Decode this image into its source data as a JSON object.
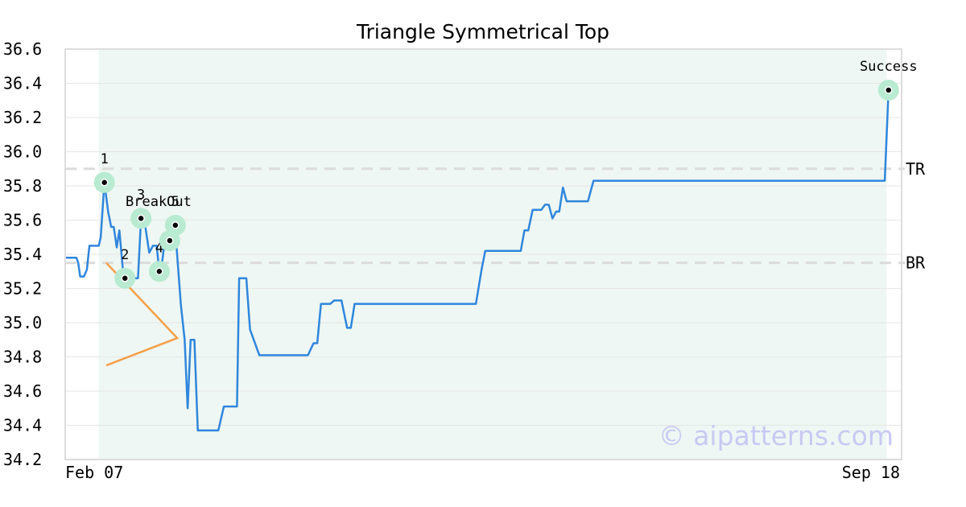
{
  "chart_data": {
    "type": "line",
    "title": "Triangle Symmetrical Top",
    "xlabel": "",
    "ylabel": "",
    "x_tick_labels": [
      "Feb 07",
      "Sep 18"
    ],
    "ylim": [
      34.2,
      36.6
    ],
    "y_ticks": [
      34.2,
      34.4,
      34.6,
      34.8,
      35.0,
      35.2,
      35.4,
      35.6,
      35.8,
      36.0,
      36.2,
      36.4,
      36.6
    ],
    "grid": true,
    "legend": "none",
    "x_range_days": [
      0,
      224
    ],
    "pattern_window_days": [
      9,
      220
    ],
    "series": [
      {
        "color": "#2f86dd",
        "points": [
          [
            0,
            35.38
          ],
          [
            3,
            35.38
          ],
          [
            3.5,
            35.35
          ],
          [
            4,
            35.27
          ],
          [
            5,
            35.27
          ],
          [
            5.8,
            35.31
          ],
          [
            6.5,
            35.45
          ],
          [
            8,
            35.45
          ],
          [
            9,
            35.45
          ],
          [
            9.5,
            35.5
          ],
          [
            10.5,
            35.82
          ],
          [
            11.5,
            35.65
          ],
          [
            12.3,
            35.56
          ],
          [
            13,
            35.56
          ],
          [
            13.8,
            35.44
          ],
          [
            14.5,
            35.54
          ],
          [
            15.5,
            35.3
          ],
          [
            16,
            35.26
          ],
          [
            19,
            35.26
          ],
          [
            19.5,
            35.26
          ],
          [
            20.3,
            35.61
          ],
          [
            21.2,
            35.6
          ],
          [
            22.5,
            35.41
          ],
          [
            23.5,
            35.45
          ],
          [
            24.5,
            35.45
          ],
          [
            25.2,
            35.3
          ],
          [
            25.8,
            35.33
          ],
          [
            26.8,
            35.5
          ],
          [
            28,
            35.47
          ],
          [
            29,
            35.57
          ],
          [
            29.8,
            35.45
          ],
          [
            31,
            35.1
          ],
          [
            32,
            34.9
          ],
          [
            32.8,
            34.5
          ],
          [
            33.6,
            34.9
          ],
          [
            34.6,
            34.9
          ],
          [
            35.5,
            34.37
          ],
          [
            41,
            34.37
          ],
          [
            42.5,
            34.51
          ],
          [
            46,
            34.51
          ],
          [
            46.6,
            35.26
          ],
          [
            48.5,
            35.26
          ],
          [
            49.5,
            34.96
          ],
          [
            52,
            34.81
          ],
          [
            61,
            34.81
          ],
          [
            65,
            34.81
          ],
          [
            66.5,
            34.88
          ],
          [
            67.5,
            34.88
          ],
          [
            68.5,
            35.11
          ],
          [
            71,
            35.11
          ],
          [
            72,
            35.13
          ],
          [
            74,
            35.13
          ],
          [
            75.5,
            34.97
          ],
          [
            76.5,
            34.97
          ],
          [
            77.5,
            35.11
          ],
          [
            84,
            35.11
          ],
          [
            100,
            35.11
          ],
          [
            110,
            35.11
          ],
          [
            111.5,
            35.31
          ],
          [
            112.5,
            35.42
          ],
          [
            122,
            35.42
          ],
          [
            123,
            35.54
          ],
          [
            124,
            35.54
          ],
          [
            125.2,
            35.66
          ],
          [
            127.5,
            35.66
          ],
          [
            128.5,
            35.69
          ],
          [
            129.5,
            35.69
          ],
          [
            130.5,
            35.61
          ],
          [
            131.5,
            35.65
          ],
          [
            132.3,
            35.65
          ],
          [
            133.3,
            35.79
          ],
          [
            134.3,
            35.71
          ],
          [
            135,
            35.71
          ],
          [
            140,
            35.71
          ],
          [
            141.5,
            35.83
          ],
          [
            160,
            35.83
          ],
          [
            200,
            35.83
          ],
          [
            219.5,
            35.83
          ],
          [
            220.5,
            36.36
          ]
        ]
      }
    ],
    "pivot_points": [
      {
        "label": "1",
        "x": 10.5,
        "y": 35.82
      },
      {
        "label": "2",
        "x": 16,
        "y": 35.26
      },
      {
        "label": "3",
        "x": 20.3,
        "y": 35.61
      },
      {
        "label": "4",
        "x": 25.2,
        "y": 35.3
      },
      {
        "label": "",
        "x": 28,
        "y": 35.48
      },
      {
        "label": "5",
        "x": 29.5,
        "y": 35.57
      },
      {
        "label": "Success",
        "x": 220.5,
        "y": 36.36
      }
    ],
    "breakout_label": "BreakOut",
    "levels": [
      {
        "label": "TR",
        "y": 35.9
      },
      {
        "label": "BR",
        "y": 35.35
      }
    ],
    "triangle": [
      [
        11,
        35.35
      ],
      [
        30,
        34.91
      ],
      [
        11,
        34.75
      ]
    ],
    "colors": {
      "line": "#2f86dd",
      "triangle": "#f5a049",
      "window_fill": "#eef7f3",
      "marker_halo": "#b8ebd1",
      "level_line": "#dcdcdc",
      "grid": "#e6e6e6",
      "frame": "#dddddd"
    },
    "watermark": "© aipatterns.com"
  }
}
